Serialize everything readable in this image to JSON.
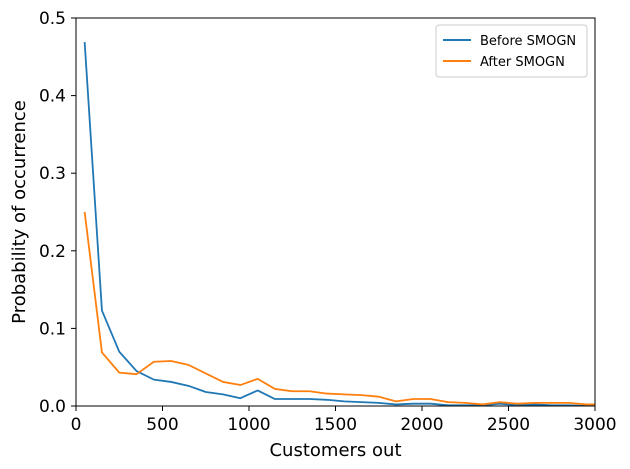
{
  "chart_data": {
    "type": "line",
    "title": "",
    "xlabel": "Customers out",
    "ylabel": "Probability of occurrence",
    "xlim": [
      0,
      3000
    ],
    "ylim": [
      0,
      0.5
    ],
    "xticks": [
      0,
      500,
      1000,
      1500,
      2000,
      2500,
      3000
    ],
    "xtick_labels": [
      "0",
      "500",
      "1000",
      "1500",
      "2000",
      "2500",
      "3000"
    ],
    "yticks": [
      0,
      0.1,
      0.2,
      0.3,
      0.4,
      0.5
    ],
    "ytick_labels": [
      "0.0",
      "0.1",
      "0.2",
      "0.3",
      "0.4",
      "0.5"
    ],
    "grid": false,
    "legend_position": "top-right",
    "x": [
      50,
      150,
      250,
      350,
      450,
      550,
      650,
      750,
      850,
      950,
      1050,
      1150,
      1250,
      1350,
      1450,
      1550,
      1650,
      1750,
      1850,
      1950,
      2050,
      2150,
      2250,
      2350,
      2450,
      2550,
      2650,
      2750,
      2850,
      2950,
      3050
    ],
    "series": [
      {
        "name": "Before SMOGN",
        "color": "#1f77b4",
        "values": [
          0.469,
          0.123,
          0.07,
          0.045,
          0.034,
          0.031,
          0.026,
          0.018,
          0.015,
          0.01,
          0.02,
          0.009,
          0.009,
          0.009,
          0.008,
          0.006,
          0.005,
          0.004,
          0.002,
          0.003,
          0.003,
          0.001,
          0.001,
          0.001,
          0.003,
          0.001,
          0.002,
          0.001,
          0.001,
          0.0,
          0.0
        ]
      },
      {
        "name": "After SMOGN",
        "color": "#ff7f0e",
        "values": [
          0.25,
          0.069,
          0.043,
          0.041,
          0.057,
          0.058,
          0.053,
          0.042,
          0.031,
          0.027,
          0.035,
          0.022,
          0.019,
          0.019,
          0.016,
          0.015,
          0.014,
          0.012,
          0.006,
          0.009,
          0.009,
          0.005,
          0.004,
          0.002,
          0.005,
          0.003,
          0.004,
          0.004,
          0.004,
          0.002,
          0.002
        ]
      }
    ]
  }
}
